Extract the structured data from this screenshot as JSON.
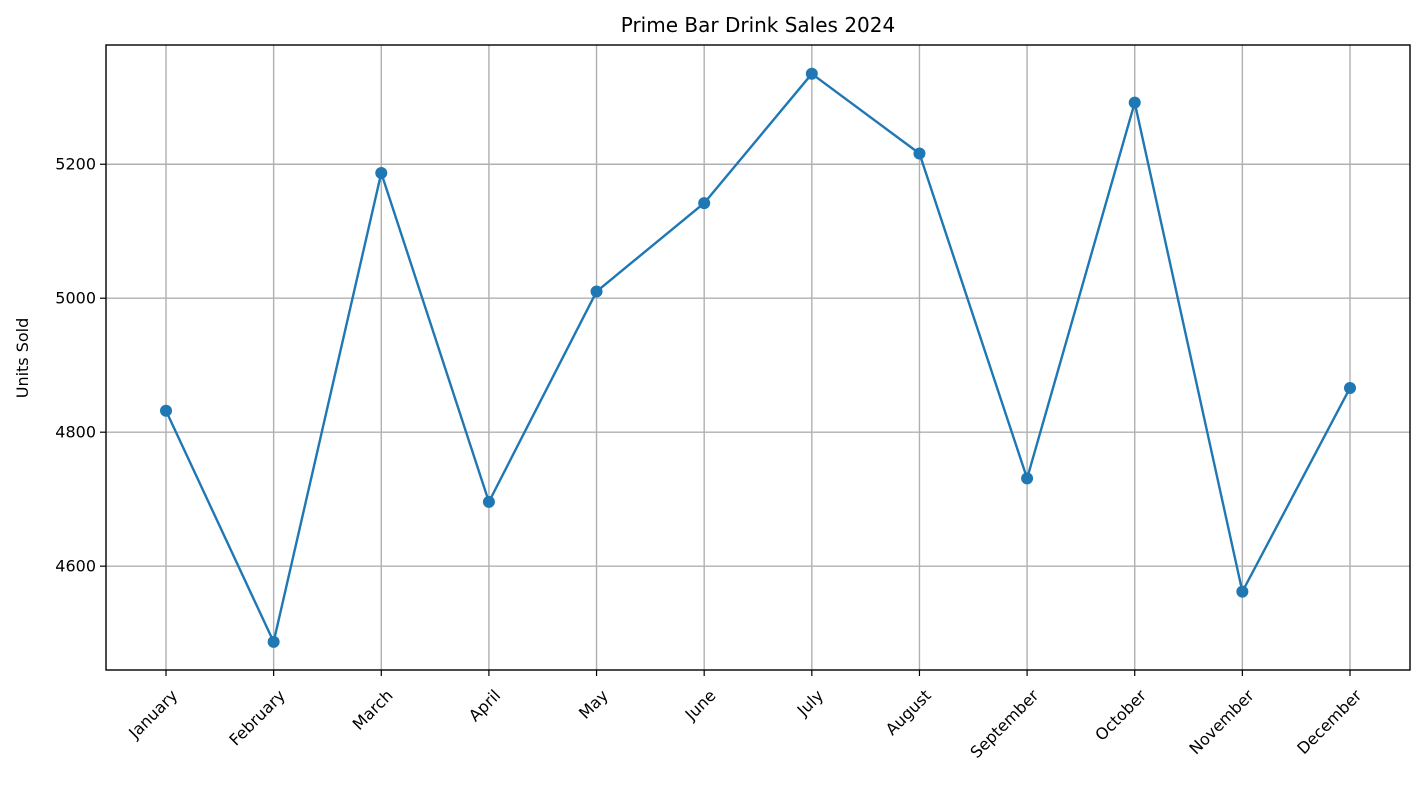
{
  "chart_data": {
    "type": "line",
    "title": "Prime Bar Drink Sales 2024",
    "xlabel": "",
    "ylabel": "Units Sold",
    "categories": [
      "January",
      "February",
      "March",
      "April",
      "May",
      "June",
      "July",
      "August",
      "September",
      "October",
      "November",
      "December"
    ],
    "series": [
      {
        "values": [
          4832,
          4487,
          5187,
          4696,
          5010,
          5142,
          5335,
          5216,
          4731,
          5292,
          4562,
          4866
        ],
        "color": "#1f77b4",
        "marker": "circle"
      }
    ],
    "ylim": [
      4445,
      5378
    ],
    "yticks": [
      4600,
      4800,
      5000,
      5200
    ],
    "grid": true,
    "xtick_rotation": 45
  }
}
